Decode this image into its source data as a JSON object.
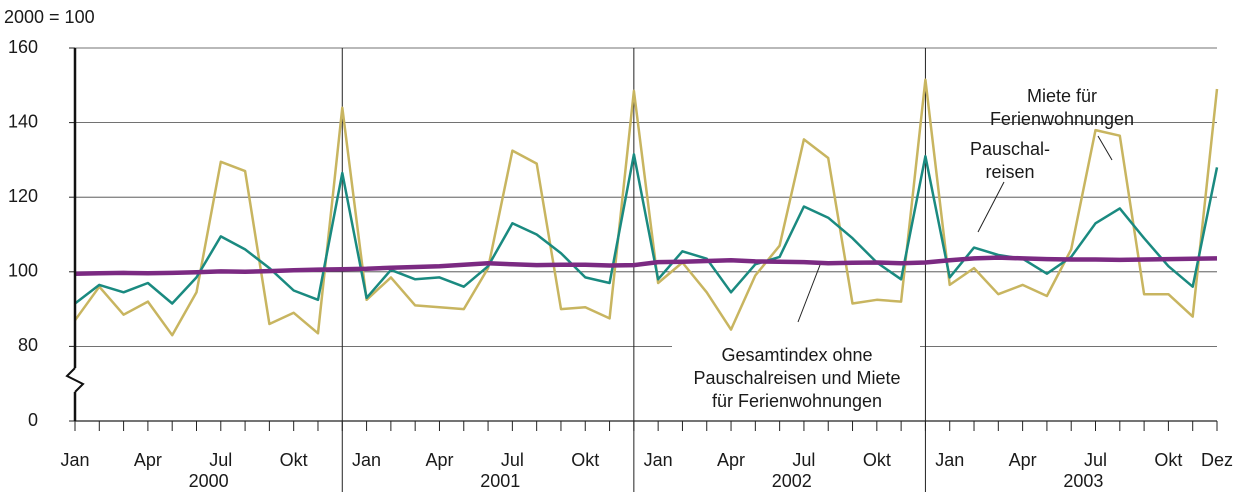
{
  "chart_data": {
    "type": "line",
    "unit_label": "2000 = 100",
    "categories": [
      "Jan",
      null,
      null,
      "Apr",
      null,
      null,
      "Jul",
      null,
      null,
      "Okt",
      null,
      null,
      "Jan",
      null,
      null,
      "Apr",
      null,
      null,
      "Jul",
      null,
      null,
      "Okt",
      null,
      null,
      "Jan",
      null,
      null,
      "Apr",
      null,
      null,
      "Jul",
      null,
      null,
      "Okt",
      null,
      null,
      "Jan",
      null,
      null,
      "Apr",
      null,
      null,
      "Jul",
      null,
      null,
      "Okt",
      null,
      "Dez"
    ],
    "groups": [
      "2000",
      "2001",
      "2002",
      "2003"
    ],
    "ylim": [
      0,
      160
    ],
    "yticks": [
      0,
      80,
      100,
      120,
      140,
      160
    ],
    "axis_break": true,
    "grid": true,
    "series": [
      {
        "name": "Miete für Ferienwohnungen",
        "color": "#c8b560",
        "width": 2.5,
        "values": [
          87,
          96,
          88.5,
          92,
          83,
          94.5,
          129.5,
          127,
          86,
          89,
          83.5,
          144,
          92.5,
          98.5,
          91,
          90.5,
          90,
          101,
          132.5,
          129,
          90,
          90.5,
          87.5,
          148.5,
          97,
          102.5,
          94.5,
          84.5,
          99,
          107,
          135.5,
          130.5,
          91.5,
          92.5,
          92,
          151.5,
          96.5,
          101,
          94,
          96.5,
          93.5,
          106,
          138,
          136.5,
          94,
          94,
          88,
          149
        ]
      },
      {
        "name": "Pauschalreisen",
        "color": "#1a8a80",
        "width": 2.5,
        "values": [
          91.5,
          96.5,
          94.5,
          97,
          91.5,
          98.5,
          109.5,
          106,
          101,
          95,
          92.5,
          126.5,
          93,
          100.5,
          98,
          98.5,
          96,
          101.5,
          113,
          110,
          105,
          98.5,
          97,
          131.5,
          98,
          105.5,
          103.5,
          94.5,
          102,
          104,
          117.5,
          114.5,
          109,
          102.5,
          98,
          131,
          98.5,
          106.5,
          104.5,
          103.5,
          99.5,
          104,
          113,
          117,
          109,
          101.5,
          96,
          128
        ]
      },
      {
        "name": "Gesamtindex ohne Pauschalreisen und Miete für Ferienwohnungen",
        "color": "#7b2a82",
        "width": 4.5,
        "values": [
          99.5,
          99.6,
          99.7,
          99.6,
          99.7,
          99.9,
          100.1,
          100,
          100.2,
          100.4,
          100.6,
          100.7,
          100.8,
          101.1,
          101.3,
          101.5,
          101.9,
          102.3,
          102,
          101.8,
          101.9,
          101.9,
          101.7,
          101.8,
          102.6,
          102.7,
          102.9,
          103.1,
          102.8,
          102.7,
          102.6,
          102.3,
          102.4,
          102.5,
          102.3,
          102.5,
          103.1,
          103.6,
          103.8,
          103.6,
          103.4,
          103.3,
          103.3,
          103.2,
          103.3,
          103.4,
          103.5,
          103.6
        ]
      }
    ],
    "annotations": [
      {
        "lines": [
          "Miete für",
          "Ferienwohnungen"
        ]
      },
      {
        "lines": [
          "Pauschal-",
          "reisen"
        ]
      },
      {
        "lines": [
          "Gesamtindex ohne",
          "Pauschalreisen und Miete",
          "für Ferienwohnungen"
        ]
      }
    ]
  }
}
